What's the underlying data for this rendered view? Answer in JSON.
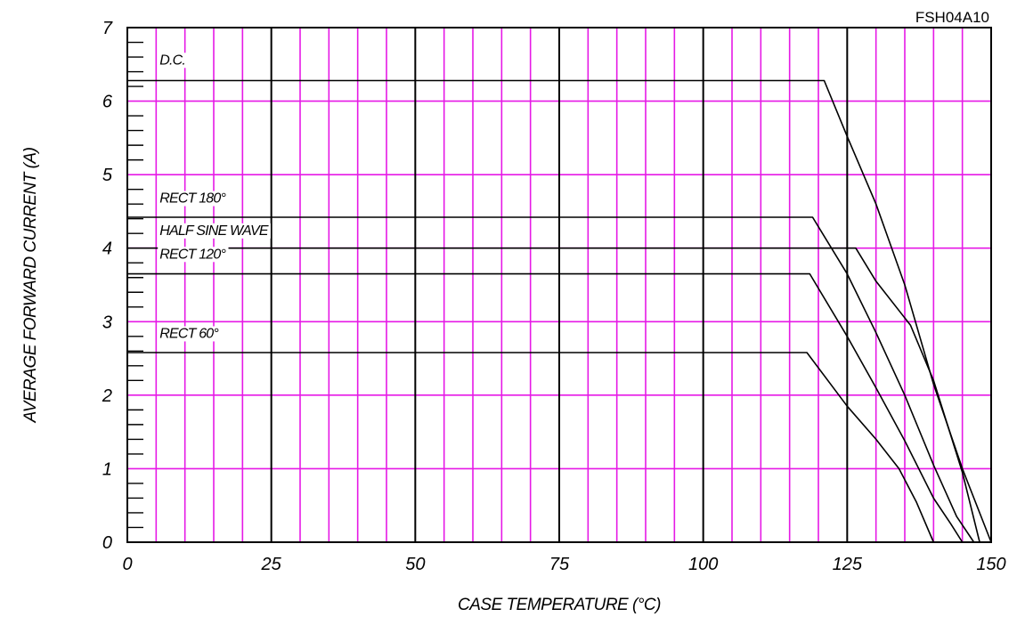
{
  "chart_data": {
    "type": "line",
    "part_number": "FSH04A10",
    "title": "",
    "xlabel": "CASE TEMPERATURE (°C)",
    "ylabel": "AVERAGE FORWARD CURRENT (A)",
    "xlim": [
      0,
      150
    ],
    "ylim": [
      0,
      7
    ],
    "x_ticks": [
      0,
      25,
      50,
      75,
      100,
      125,
      150
    ],
    "y_ticks": [
      0,
      1,
      2,
      3,
      4,
      5,
      6,
      7
    ],
    "x_minor_step": 5,
    "y_minor_step": 1,
    "grid": true,
    "colors": {
      "minor_grid": "#e619e6",
      "major_grid": "#000000",
      "curve": "#000000"
    },
    "series": [
      {
        "name": "D.C.",
        "points": [
          [
            0,
            6.28
          ],
          [
            121,
            6.28
          ],
          [
            125,
            5.52
          ],
          [
            130,
            4.6
          ],
          [
            135,
            3.5
          ],
          [
            140,
            2.15
          ],
          [
            145,
            1.0
          ],
          [
            150,
            0
          ]
        ]
      },
      {
        "name": "RECT 180°",
        "points": [
          [
            0,
            4.42
          ],
          [
            119,
            4.42
          ],
          [
            125,
            3.65
          ],
          [
            130,
            2.85
          ],
          [
            135,
            2.0
          ],
          [
            140,
            1.05
          ],
          [
            144,
            0.35
          ],
          [
            147,
            0
          ]
        ]
      },
      {
        "name": "HALF SINE WAVE",
        "points": [
          [
            0,
            4.0
          ],
          [
            126.5,
            4.0
          ],
          [
            130,
            3.55
          ],
          [
            136,
            2.95
          ],
          [
            140,
            2.2
          ],
          [
            145,
            0.95
          ],
          [
            148,
            0
          ]
        ]
      },
      {
        "name": "RECT 120°",
        "points": [
          [
            0,
            3.65
          ],
          [
            118.5,
            3.65
          ],
          [
            125,
            2.8
          ],
          [
            130,
            2.1
          ],
          [
            135,
            1.38
          ],
          [
            140,
            0.6
          ],
          [
            143,
            0.25
          ],
          [
            145,
            0
          ]
        ]
      },
      {
        "name": "RECT 60°",
        "points": [
          [
            0,
            2.58
          ],
          [
            118,
            2.58
          ],
          [
            125,
            1.85
          ],
          [
            130,
            1.4
          ],
          [
            134,
            1.0
          ],
          [
            137,
            0.55
          ],
          [
            140,
            0
          ]
        ]
      }
    ],
    "series_label_positions": [
      {
        "name": "D.C.",
        "x": 5.6,
        "y": 6.5
      },
      {
        "name": "RECT 180°",
        "x": 5.6,
        "y": 4.62
      },
      {
        "name": "HALF SINE WAVE",
        "x": 5.6,
        "y": 4.18
      },
      {
        "name": "RECT 120°",
        "x": 5.6,
        "y": 3.86
      },
      {
        "name": "RECT 60°",
        "x": 5.6,
        "y": 2.78
      }
    ]
  }
}
